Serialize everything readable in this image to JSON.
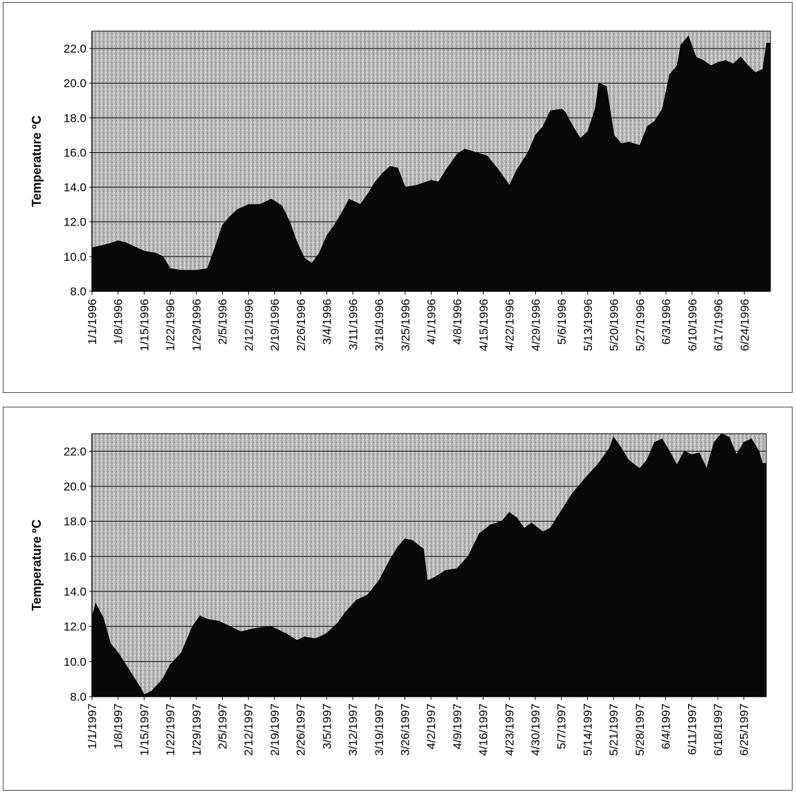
{
  "chart_data": [
    {
      "type": "area",
      "title": "",
      "xlabel": "",
      "ylabel": "Temperature   ºC",
      "ylim": [
        8.0,
        23.0
      ],
      "yticks": [
        "8.0",
        "10.0",
        "12.0",
        "14.0",
        "16.0",
        "18.0",
        "20.0",
        "22.0"
      ],
      "grid": true,
      "x_start": "1/1/1996",
      "x_end": "6/30/1996",
      "xticks": [
        "1/1/1996",
        "1/8/1996",
        "1/15/1996",
        "1/22/1996",
        "1/29/1996",
        "2/5/1996",
        "2/12/1996",
        "2/19/1996",
        "2/26/1996",
        "3/4/1996",
        "3/11/1996",
        "3/18/1996",
        "3/25/1996",
        "4/1/1996",
        "4/8/1996",
        "4/15/1996",
        "4/22/1996",
        "4/29/1996",
        "5/6/1996",
        "5/13/1996",
        "5/20/1996",
        "5/27/1996",
        "6/3/1996",
        "6/10/1996",
        "6/17/1996",
        "6/24/1996"
      ],
      "series": [
        {
          "x": [
            "1/1/1996",
            "1/3/1996",
            "1/5/1996",
            "1/8/1996",
            "1/10/1996",
            "1/13/1996",
            "1/15/1996",
            "1/18/1996",
            "1/20/1996",
            "1/22/1996",
            "1/25/1996",
            "1/29/1996",
            "2/1/1996",
            "2/3/1996",
            "2/5/1996",
            "2/7/1996",
            "2/9/1996",
            "2/12/1996",
            "2/15/1996",
            "2/18/1996",
            "2/19/1996",
            "2/21/1996",
            "2/23/1996",
            "2/25/1996",
            "2/27/1996",
            "2/29/1996",
            "3/2/1996",
            "3/4/1996",
            "3/6/1996",
            "3/8/1996",
            "3/10/1996",
            "3/11/1996",
            "3/13/1996",
            "3/15/1996",
            "3/17/1996",
            "3/19/1996",
            "3/21/1996",
            "3/23/1996",
            "3/25/1996",
            "3/28/1996",
            "4/1/1996",
            "4/3/1996",
            "4/5/1996",
            "4/8/1996",
            "4/10/1996",
            "4/13/1996",
            "4/16/1996",
            "4/19/1996",
            "4/22/1996",
            "4/24/1996",
            "4/27/1996",
            "4/29/1996",
            "5/1/1996",
            "5/3/1996",
            "5/6/1996",
            "5/7/1996",
            "5/9/1996",
            "5/11/1996",
            "5/13/1996",
            "5/15/1996",
            "5/16/1996",
            "5/18/1996",
            "5/20/1996",
            "5/22/1996",
            "5/24/1996",
            "5/27/1996",
            "5/29/1996",
            "5/31/1996",
            "6/2/1996",
            "6/4/1996",
            "6/6/1996",
            "6/7/1996",
            "6/9/1996",
            "6/11/1996",
            "6/13/1996",
            "6/15/1996",
            "6/17/1996",
            "6/19/1996",
            "6/21/1996",
            "6/23/1996",
            "6/25/1996",
            "6/27/1996",
            "6/29/1996",
            "6/30/1996"
          ],
          "y": [
            10.5,
            10.6,
            10.7,
            10.9,
            10.8,
            10.5,
            10.3,
            10.2,
            10.0,
            9.3,
            9.2,
            9.2,
            9.3,
            10.5,
            11.8,
            12.3,
            12.7,
            13.0,
            13.0,
            13.3,
            13.2,
            12.9,
            12.0,
            10.8,
            9.9,
            9.6,
            10.2,
            11.2,
            11.8,
            12.5,
            13.3,
            13.2,
            13.0,
            13.6,
            14.3,
            14.8,
            15.2,
            15.1,
            14.0,
            14.1,
            14.4,
            14.3,
            15.0,
            15.9,
            16.2,
            16.0,
            15.8,
            15.0,
            14.1,
            15.0,
            16.0,
            17.0,
            17.5,
            18.4,
            18.5,
            18.3,
            17.5,
            16.8,
            17.2,
            18.5,
            20.0,
            19.8,
            17.0,
            16.5,
            16.6,
            16.4,
            17.5,
            17.8,
            18.5,
            20.5,
            21.0,
            22.2,
            22.7,
            21.5,
            21.3,
            21.0,
            21.2,
            21.3,
            21.1,
            21.5,
            21.0,
            20.6,
            20.8,
            22.3
          ]
        }
      ]
    },
    {
      "type": "area",
      "title": "",
      "xlabel": "",
      "ylabel": "Temperature   ºC",
      "ylim": [
        8.0,
        23.0
      ],
      "yticks": [
        "8.0",
        "10.0",
        "12.0",
        "14.0",
        "16.0",
        "18.0",
        "20.0",
        "22.0"
      ],
      "grid": true,
      "x_start": "1/1/1997",
      "x_end": "6/30/1997",
      "xticks": [
        "1/1/1997",
        "1/8/1997",
        "1/15/1997",
        "1/22/1997",
        "1/29/1997",
        "2/5/1997",
        "2/12/1997",
        "2/19/1997",
        "2/26/1997",
        "3/5/1997",
        "3/12/1997",
        "3/19/1997",
        "3/26/1997",
        "4/2/1997",
        "4/9/1997",
        "4/16/1997",
        "4/23/1997",
        "4/30/1997",
        "5/7/1997",
        "5/14/1997",
        "5/21/1997",
        "5/28/1997",
        "6/4/1997",
        "6/11/1997",
        "6/18/1997",
        "6/25/1997"
      ],
      "series": [
        {
          "x": [
            "1/1/1997",
            "1/2/1997",
            "1/4/1997",
            "1/6/1997",
            "1/8/1997",
            "1/11/1997",
            "1/14/1997",
            "1/15/1997",
            "1/17/1997",
            "1/20/1997",
            "1/22/1997",
            "1/25/1997",
            "1/28/1997",
            "1/30/1997",
            "2/1/1997",
            "2/4/1997",
            "2/7/1997",
            "2/10/1997",
            "2/14/1997",
            "2/18/1997",
            "2/22/1997",
            "2/25/1997",
            "2/27/1997",
            "3/2/1997",
            "3/5/1997",
            "3/8/1997",
            "3/10/1997",
            "3/13/1997",
            "3/16/1997",
            "3/19/1997",
            "3/22/1997",
            "3/24/1997",
            "3/26/1997",
            "3/28/1997",
            "3/31/1997",
            "4/1/1997",
            "4/3/1997",
            "4/6/1997",
            "4/9/1997",
            "4/12/1997",
            "4/15/1997",
            "4/18/1997",
            "4/21/1997",
            "4/23/1997",
            "4/25/1997",
            "4/27/1997",
            "4/29/1997",
            "5/2/1997",
            "5/4/1997",
            "5/7/1997",
            "5/10/1997",
            "5/14/1997",
            "5/17/1997",
            "5/20/1997",
            "5/21/1997",
            "5/23/1997",
            "5/25/1997",
            "5/28/1997",
            "5/30/1997",
            "6/1/1997",
            "6/3/1997",
            "6/5/1997",
            "6/7/1997",
            "6/9/1997",
            "6/11/1997",
            "6/13/1997",
            "6/15/1997",
            "6/17/1997",
            "6/19/1997",
            "6/21/1997",
            "6/23/1997",
            "6/25/1997",
            "6/27/1997",
            "6/29/1997",
            "6/30/1997"
          ],
          "y": [
            12.5,
            13.3,
            12.5,
            11.0,
            10.5,
            9.5,
            8.5,
            8.1,
            8.3,
            9.0,
            9.8,
            10.5,
            12.0,
            12.6,
            12.4,
            12.3,
            12.0,
            11.7,
            11.9,
            12.0,
            11.6,
            11.2,
            11.4,
            11.3,
            11.6,
            12.2,
            12.8,
            13.5,
            13.8,
            14.6,
            15.8,
            16.5,
            17.0,
            16.9,
            16.4,
            14.6,
            14.8,
            15.2,
            15.3,
            16.0,
            17.3,
            17.8,
            18.0,
            18.5,
            18.2,
            17.6,
            17.9,
            17.4,
            17.6,
            18.6,
            19.6,
            20.6,
            21.3,
            22.2,
            22.8,
            22.2,
            21.5,
            21.0,
            21.5,
            22.5,
            22.7,
            22.0,
            21.2,
            22.0,
            21.8,
            21.9,
            21.0,
            22.5,
            23.0,
            22.8,
            21.8,
            22.5,
            22.7,
            22.0,
            21.3
          ]
        }
      ]
    }
  ]
}
